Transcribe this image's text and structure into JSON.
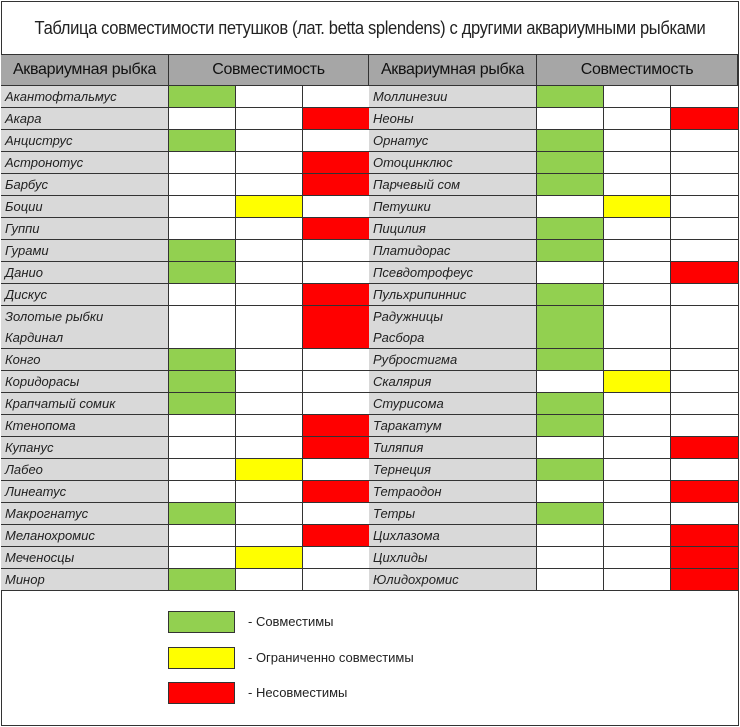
{
  "title": "Таблица совместимости петушков (лат. betta splendens) с другими аквариумными рыбками",
  "headers": {
    "fish": "Аквариумная рыбка",
    "compat": "Совместимость"
  },
  "colors": {
    "compatible": "#92d050",
    "limited": "#ffff00",
    "incompatible": "#ff0000"
  },
  "left": [
    {
      "name": "Акантофтальмус",
      "status": "compatible"
    },
    {
      "name": "Акара",
      "status": "incompatible"
    },
    {
      "name": "Анциструс",
      "status": "compatible"
    },
    {
      "name": "Астронотус",
      "status": "incompatible"
    },
    {
      "name": "Барбус",
      "status": "incompatible"
    },
    {
      "name": "Боции",
      "status": "limited"
    },
    {
      "name": "Гуппи",
      "status": "incompatible"
    },
    {
      "name": "Гурами",
      "status": "compatible"
    },
    {
      "name": "Данио",
      "status": "compatible"
    },
    {
      "name": "Дискус",
      "status": "incompatible"
    },
    {
      "name": "Золотые рыбки",
      "status": "incompatible"
    },
    {
      "name": "Кардинал",
      "status": "incompatible"
    },
    {
      "name": "Конго",
      "status": "compatible"
    },
    {
      "name": "Коридорасы",
      "status": "compatible"
    },
    {
      "name": "Крапчатый сомик",
      "status": "compatible"
    },
    {
      "name": "Ктенопома",
      "status": "incompatible"
    },
    {
      "name": "Купанус",
      "status": "incompatible"
    },
    {
      "name": "Лабео",
      "status": "limited"
    },
    {
      "name": "Линеатус",
      "status": "incompatible"
    },
    {
      "name": "Макрогнатус",
      "status": "compatible"
    },
    {
      "name": "Меланохромис",
      "status": "incompatible"
    },
    {
      "name": "Меченосцы",
      "status": "limited"
    },
    {
      "name": "Минор",
      "status": "compatible"
    }
  ],
  "right": [
    {
      "name": "Моллинезии",
      "status": "compatible"
    },
    {
      "name": "Неоны",
      "status": "incompatible"
    },
    {
      "name": "Орнатус",
      "status": "compatible"
    },
    {
      "name": "Отоцинклюс",
      "status": "compatible"
    },
    {
      "name": "Парчевый сом",
      "status": "compatible"
    },
    {
      "name": "Петушки",
      "status": "limited"
    },
    {
      "name": "Пицилия",
      "status": "compatible"
    },
    {
      "name": "Платидорас",
      "status": "compatible"
    },
    {
      "name": "Псевдотрофеус",
      "status": "incompatible"
    },
    {
      "name": "Пульхрипиннис",
      "status": "compatible"
    },
    {
      "name": "Радужницы",
      "status": "compatible"
    },
    {
      "name": "Расбора",
      "status": "compatible"
    },
    {
      "name": "Рубростигма",
      "status": "compatible"
    },
    {
      "name": "Скалярия",
      "status": "limited"
    },
    {
      "name": "Стурисома",
      "status": "compatible"
    },
    {
      "name": "Таракатум",
      "status": "compatible"
    },
    {
      "name": "Тиляпия",
      "status": "incompatible"
    },
    {
      "name": "Тернеция",
      "status": "compatible"
    },
    {
      "name": "Тетраодон",
      "status": "incompatible"
    },
    {
      "name": "Тетры",
      "status": "compatible"
    },
    {
      "name": "Цихлазома",
      "status": "incompatible"
    },
    {
      "name": "Цихлиды",
      "status": "incompatible"
    },
    {
      "name": "Юлидохромис",
      "status": "incompatible"
    }
  ],
  "legend": [
    {
      "status": "compatible",
      "label": "- Совместимы"
    },
    {
      "status": "limited",
      "label": "- Ограниченно совместимы"
    },
    {
      "status": "incompatible",
      "label": "- Несовместимы"
    }
  ]
}
